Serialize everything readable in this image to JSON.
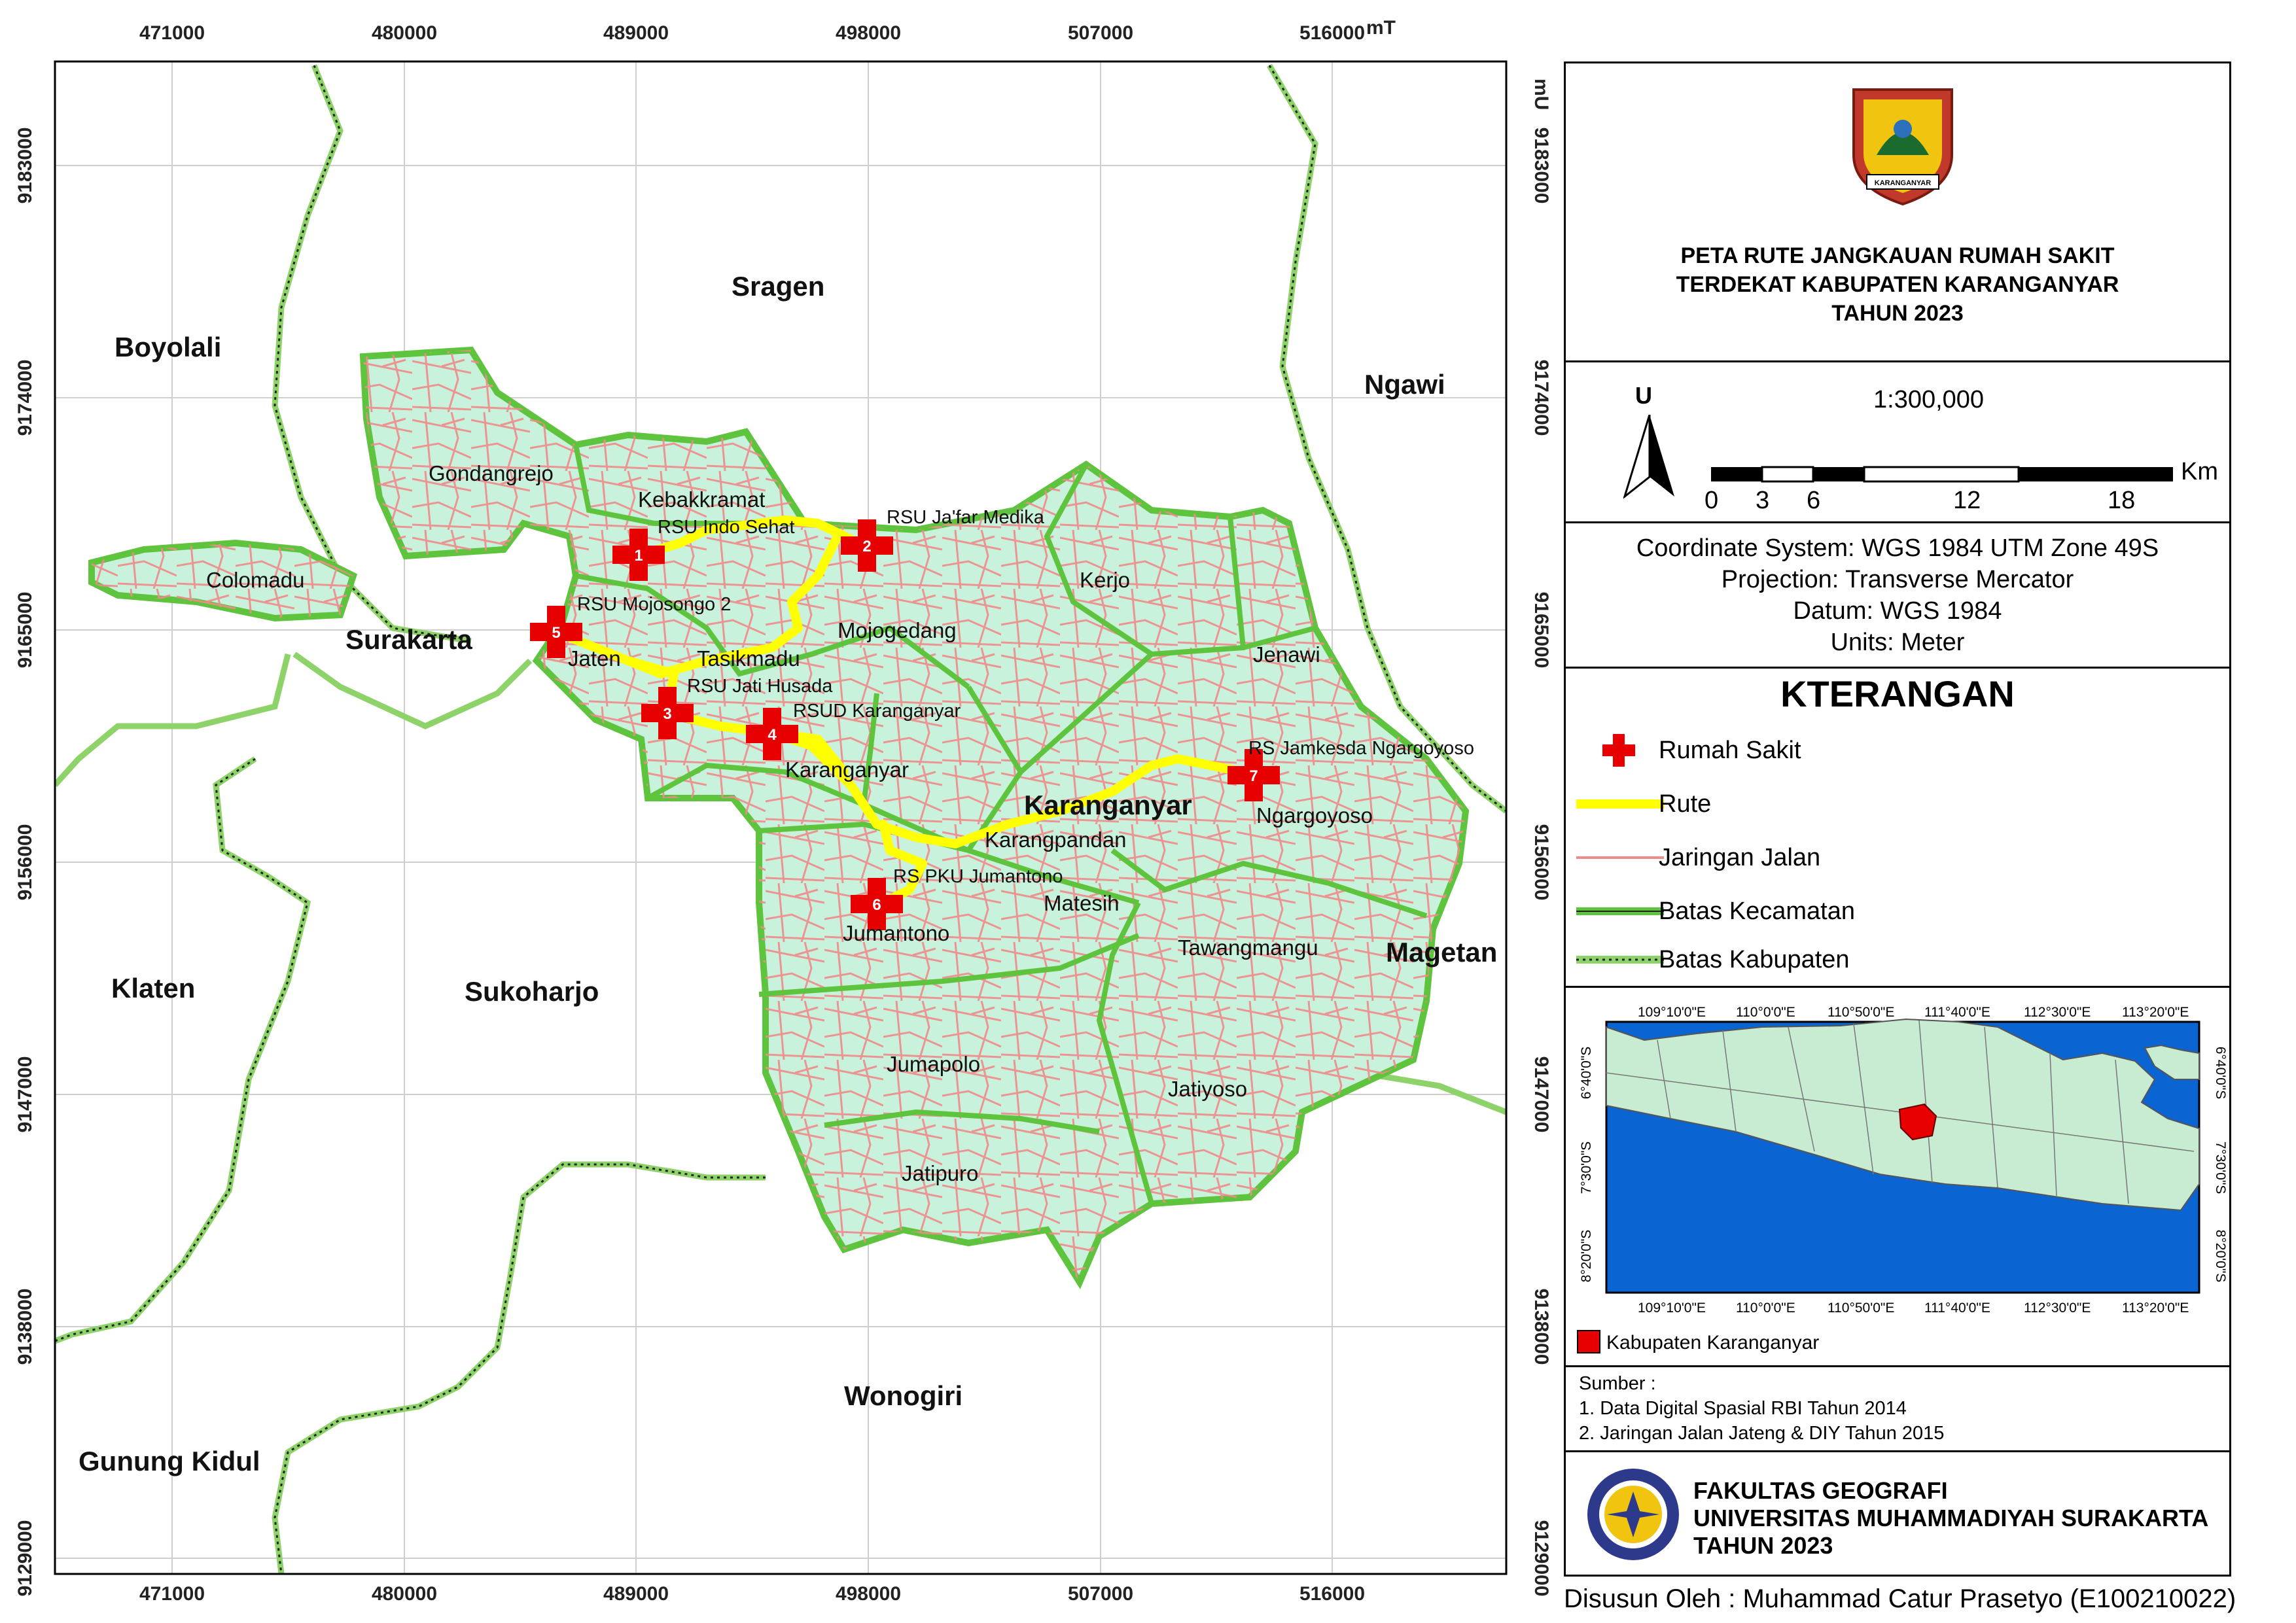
{
  "map": {
    "x_ticks": [
      "471000",
      "480000",
      "489000",
      "498000",
      "507000",
      "516000"
    ],
    "y_ticks": [
      "9183000",
      "9174000",
      "9165000",
      "9156000",
      "9147000",
      "9138000",
      "9129000"
    ],
    "x_unit": "mT",
    "y_unit": "mU",
    "regions": [
      "Sragen",
      "Boyolali",
      "Ngawi",
      "Surakarta",
      "Klaten",
      "Sukoharjo",
      "Magetan",
      "Wonogiri",
      "Gunung Kidul",
      "Karanganyar"
    ],
    "kecamatan": [
      "Gondangrejo",
      "Kebakkramat",
      "Colomadu",
      "Jaten",
      "Tasikmadu",
      "Mojogedang",
      "Kerjo",
      "Jenawi",
      "Karanganyar",
      "Ngargoyoso",
      "Karangpandan",
      "Matesih",
      "Jumantono",
      "Tawangmangu",
      "Jumapolo",
      "Jatiyoso",
      "Jatipuro"
    ],
    "hospitals": [
      {
        "num": "1",
        "name": "RSU Indo Sehat"
      },
      {
        "num": "2",
        "name": "RSU Ja'far Medika"
      },
      {
        "num": "3",
        "name": "RSU Jati Husada"
      },
      {
        "num": "4",
        "name": "RSUD Karanganyar"
      },
      {
        "num": "5",
        "name": "RSU Mojosongo 2"
      },
      {
        "num": "6",
        "name": "RS PKU Jumantono"
      },
      {
        "num": "7",
        "name": "RS Jamkesda Ngargoyoso"
      }
    ]
  },
  "title": {
    "line1": "PETA RUTE JANGKAUAN RUMAH SAKIT",
    "line2": "TERDEKAT KABUPATEN KARANGANYAR",
    "line3": "TAHUN 2023",
    "emblem_icon": "karanganyar-emblem-icon",
    "emblem_banner": "KARANGANYAR"
  },
  "scale": {
    "north": "U",
    "ratio": "1:300,000",
    "labels": [
      "0",
      "3",
      "6",
      "12",
      "18"
    ],
    "unit": "Km"
  },
  "coords": {
    "system": "Coordinate System: WGS 1984 UTM Zone 49S",
    "projection": "Projection: Transverse Mercator",
    "datum": "Datum: WGS 1984",
    "units": "Units: Meter"
  },
  "legend": {
    "title": "KTERANGAN",
    "items": [
      {
        "label": "Rumah Sakit",
        "icon": "red-cross-icon"
      },
      {
        "label": "Rute",
        "color": "#ffff00"
      },
      {
        "label": "Jaringan Jalan",
        "color": "#ef8b8b"
      },
      {
        "label": "Batas Kecamatan",
        "color": "#5fc43d"
      },
      {
        "label": "Batas Kabupaten",
        "color": "#8ed36a"
      }
    ]
  },
  "inset": {
    "x_ticks": [
      "109°10'0\"E",
      "110°0'0\"E",
      "110°50'0\"E",
      "111°40'0\"E",
      "112°30'0\"E",
      "113°20'0\"E"
    ],
    "y_ticks": [
      "6°40'0\"S",
      "7°30'0\"S",
      "8°20'0\"S"
    ],
    "legend": "Kabupaten Karanganyar",
    "highlight_color": "#e60000",
    "sea_color": "#0a64d2",
    "land_color": "#c8ecd2"
  },
  "source": {
    "title": "Sumber :",
    "items": [
      "1. Data Digital Spasial RBI Tahun 2014",
      "2. Jaringan Jalan Jateng & DIY Tahun 2015"
    ]
  },
  "institution": {
    "line1": "FAKULTAS GEOGRAFI",
    "line2": "UNIVERSITAS MUHAMMADIYAH SURAKARTA",
    "line3": "TAHUN 2023",
    "logo_icon": "ums-logo-icon"
  },
  "author": "Disusun Oleh : Muhammad Catur Prasetyo (E100210022)",
  "colors": {
    "district_fill": "#c9f2dd",
    "road": "#ef8b8b",
    "route": "#ffff00",
    "hospital": "#e60000",
    "boundary": "#5fc43d"
  }
}
